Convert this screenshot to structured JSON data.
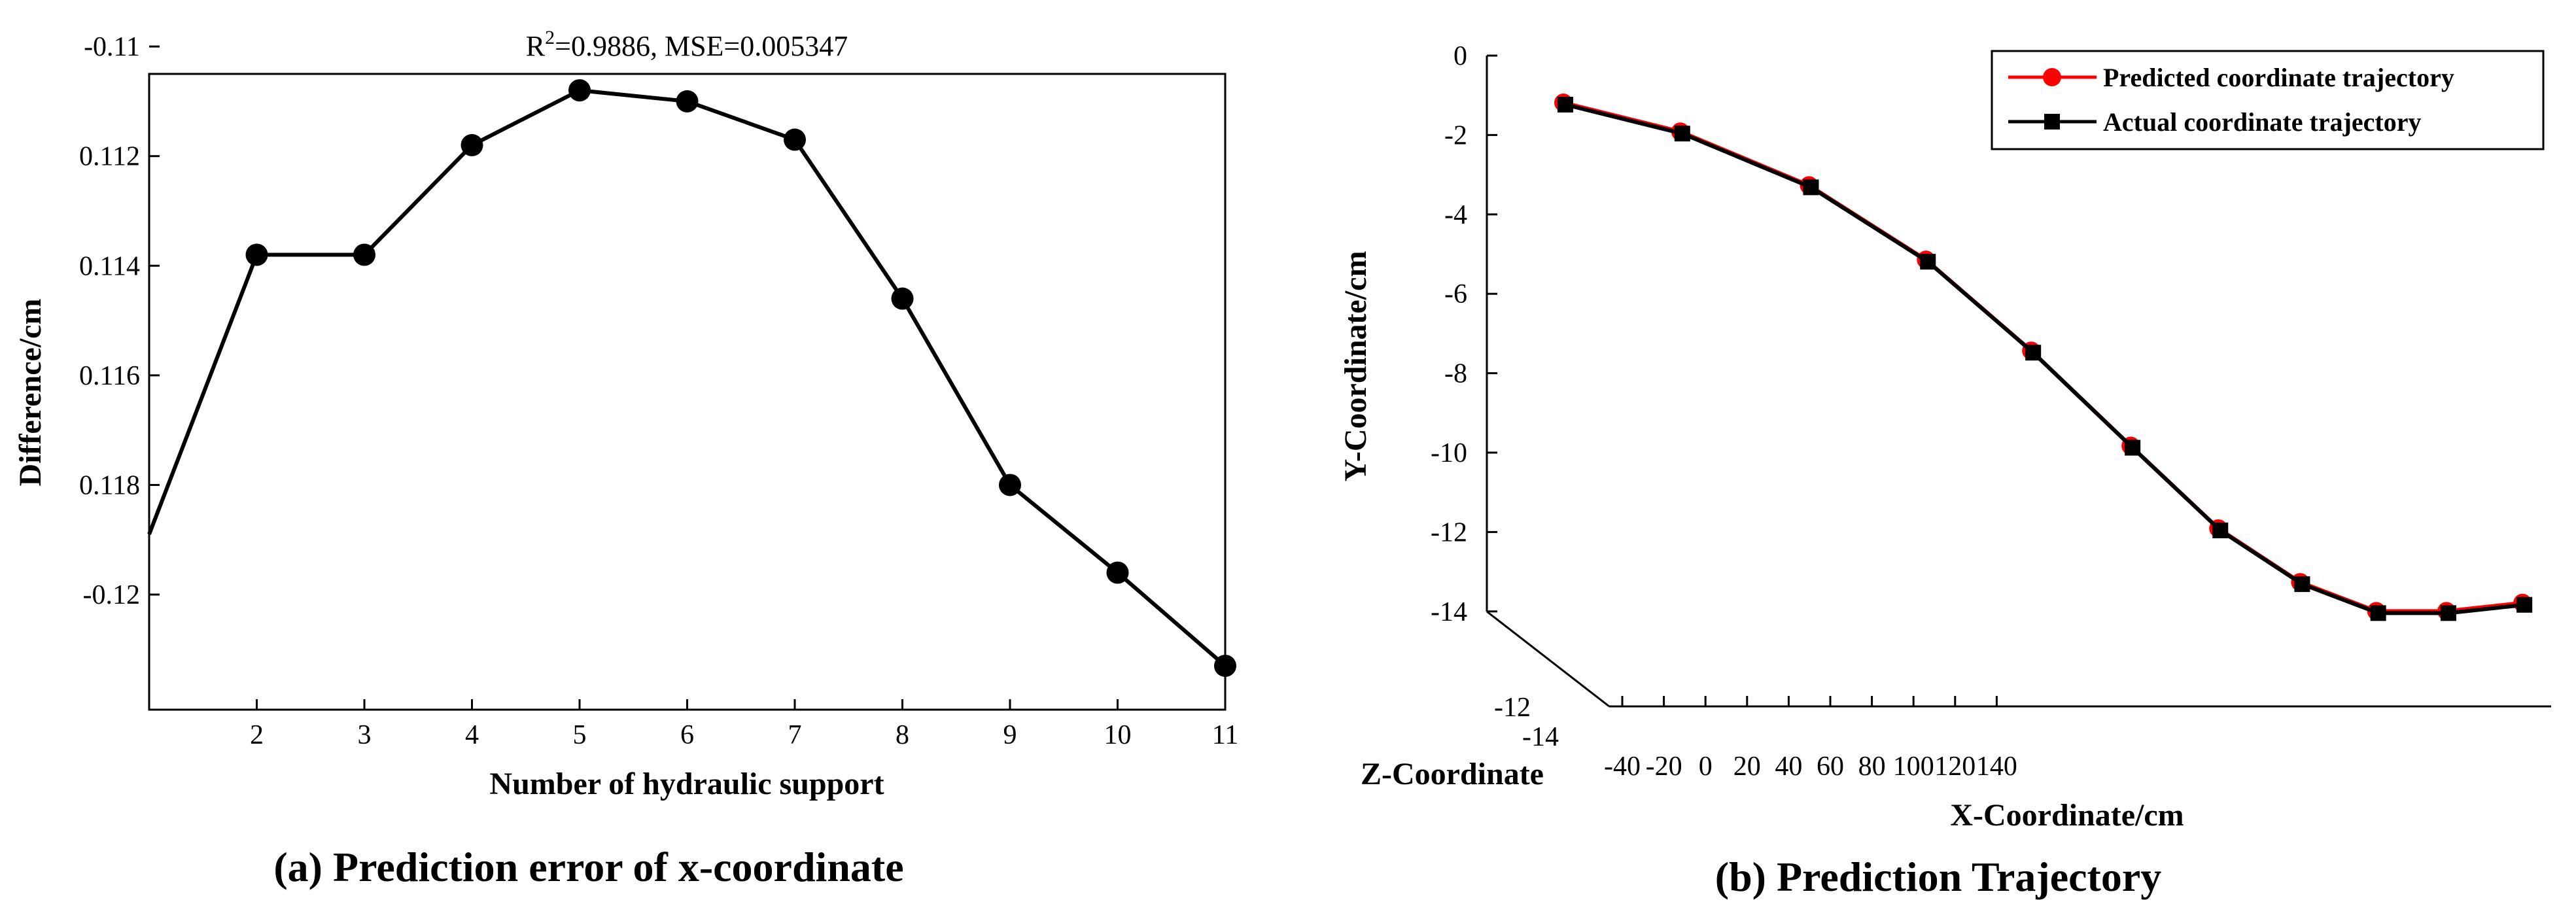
{
  "chart_data": [
    {
      "panel": "a",
      "type": "line",
      "title_r2_label": "R",
      "title_r2_sup": "2",
      "title_rest": "=0.9886, MSE=0.005347",
      "xlabel": "Number of hydraulic support",
      "ylabel": "Difference/cm",
      "caption": "(a) Prediction error of x-coordinate",
      "xlim": [
        1,
        11
      ],
      "ylim": [
        -0.1105,
        -0.1221
      ],
      "xticks": [
        2,
        3,
        4,
        5,
        6,
        7,
        8,
        9,
        10,
        11
      ],
      "yticks": [
        {
          "value": -0.11,
          "label": "-0.11"
        },
        {
          "value": -0.112,
          "label": "0.112"
        },
        {
          "value": -0.114,
          "label": "0.114"
        },
        {
          "value": -0.116,
          "label": "0.116"
        },
        {
          "value": -0.118,
          "label": "0.118"
        },
        {
          "value": -0.12,
          "label": "-0.12"
        }
      ],
      "series": [
        {
          "name": "Difference",
          "color": "#000000",
          "x": [
            1,
            2,
            3,
            4,
            5,
            6,
            7,
            8,
            9,
            10,
            11
          ],
          "y": [
            -0.1189,
            -0.1138,
            -0.1138,
            -0.1118,
            -0.1108,
            -0.111,
            -0.1117,
            -0.1146,
            -0.118,
            -0.1196,
            -0.1213
          ],
          "first_point_marker": false
        }
      ]
    },
    {
      "panel": "b",
      "type": "line",
      "caption": "(b) Prediction Trajectory",
      "xlabel": "X-Coordinate/cm",
      "ylabel": "Y-Coordinate/cm",
      "zlabel": "Z-Coordinate",
      "xticks": [
        -40,
        -20,
        0,
        20,
        40,
        60,
        80,
        100,
        120,
        140
      ],
      "yticks": [
        0,
        -2,
        -4,
        -6,
        -8,
        -10,
        -12,
        -14
      ],
      "zticks": [
        -12,
        -14
      ],
      "legend_position": "top-right",
      "series": [
        {
          "name": "Predicted coordinate trajectory",
          "color": "#ff0000",
          "marker": "circle",
          "x": [
            -48,
            -28,
            -6,
            14,
            32,
            49,
            64,
            78,
            91,
            103,
            116
          ],
          "y": [
            -1.2,
            -1.9,
            -3.2,
            -5.0,
            -7.2,
            -9.5,
            -11.5,
            -12.8,
            -13.5,
            -13.5,
            -13.3
          ]
        },
        {
          "name": "Actual coordinate trajectory",
          "color": "#000000",
          "marker": "square",
          "x": [
            -48,
            -28,
            -6,
            14,
            32,
            49,
            64,
            78,
            91,
            103,
            116
          ],
          "y": [
            -1.2,
            -1.9,
            -3.2,
            -5.0,
            -7.2,
            -9.5,
            -11.5,
            -12.8,
            -13.5,
            -13.5,
            -13.3
          ]
        }
      ]
    }
  ]
}
